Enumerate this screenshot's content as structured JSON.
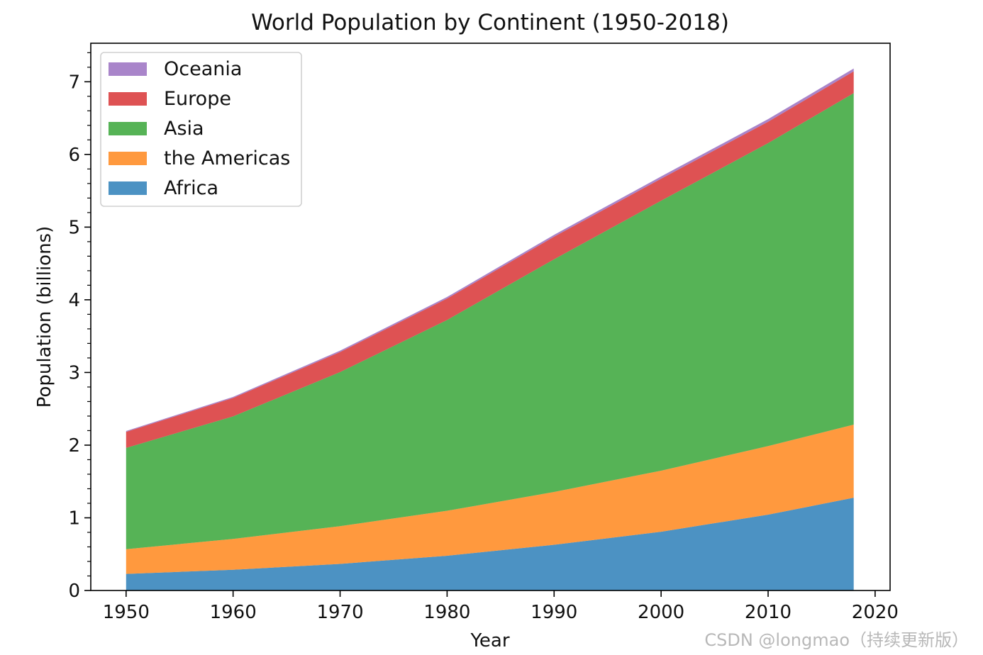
{
  "chart_data": {
    "type": "area",
    "stacked": true,
    "title": "World Population by Continent (1950-2018)",
    "xlabel": "Year",
    "ylabel": "Population (billions)",
    "x": [
      1950,
      1960,
      1970,
      1980,
      1990,
      2000,
      2010,
      2018
    ],
    "xlim": [
      1946.7,
      2021.4
    ],
    "ylim": [
      0,
      7.53
    ],
    "xticks": [
      "1950",
      "1960",
      "1970",
      "1980",
      "1990",
      "2000",
      "2010",
      "2020"
    ],
    "yticks": [
      "0",
      "1",
      "2",
      "3",
      "4",
      "5",
      "6",
      "7"
    ],
    "series": [
      {
        "name": "Africa",
        "color": "#1f77b4",
        "values": [
          0.228,
          0.285,
          0.366,
          0.478,
          0.629,
          0.808,
          1.044,
          1.276
        ]
      },
      {
        "name": "the Americas",
        "color": "#ff7f0e",
        "values": [
          0.34,
          0.425,
          0.519,
          0.619,
          0.727,
          0.841,
          0.943,
          1.007
        ]
      },
      {
        "name": "Asia",
        "color": "#2ca02c",
        "values": [
          1.394,
          1.686,
          2.12,
          2.625,
          3.202,
          3.714,
          4.169,
          4.56
        ]
      },
      {
        "name": "Europe",
        "color": "#d62728",
        "values": [
          0.22,
          0.253,
          0.276,
          0.295,
          0.31,
          0.303,
          0.294,
          0.3
        ]
      },
      {
        "name": "Oceania",
        "color": "#9467bd",
        "values": [
          0.012,
          0.015,
          0.019,
          0.022,
          0.026,
          0.031,
          0.036,
          0.039
        ]
      }
    ],
    "legend_order": [
      "Oceania",
      "Europe",
      "Asia",
      "the Americas",
      "Africa"
    ],
    "legend_position": "upper-left"
  },
  "watermark": "CSDN @longmao（持续更新版）"
}
